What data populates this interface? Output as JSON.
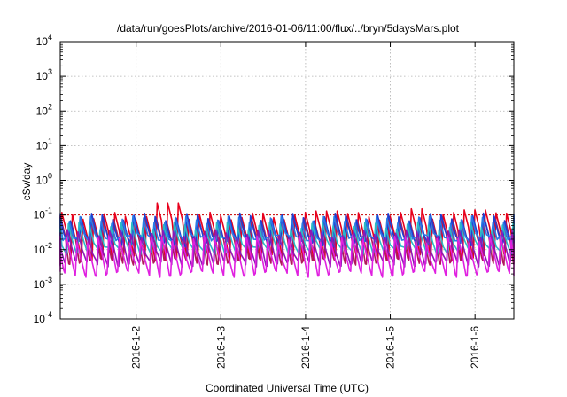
{
  "chart_data": {
    "type": "line",
    "title": "/data/run/goesPlots/archive/2016-01-06/11:00/flux/../bryn/5daysMars.plot",
    "xlabel": "Coordinated Universal Time (UTC)",
    "ylabel": "cSv/day",
    "yscale": "log",
    "ylim": [
      0.0001,
      10000
    ],
    "xlim": [
      "2016-01-01 02:30",
      "2016-01-06 11:00"
    ],
    "grid": true,
    "yticks": [
      {
        "base": "10",
        "exp": "-4",
        "value": 0.0001
      },
      {
        "base": "10",
        "exp": "-3",
        "value": 0.001
      },
      {
        "base": "10",
        "exp": "-2",
        "value": 0.01
      },
      {
        "base": "10",
        "exp": "-1",
        "value": 0.1
      },
      {
        "base": "10",
        "exp": "0",
        "value": 1
      },
      {
        "base": "10",
        "exp": "1",
        "value": 10
      },
      {
        "base": "10",
        "exp": "2",
        "value": 100
      },
      {
        "base": "10",
        "exp": "3",
        "value": 1000
      },
      {
        "base": "10",
        "exp": "4",
        "value": 10000
      }
    ],
    "xticks": [
      "2016-1-2",
      "2016-1-3",
      "2016-1-4",
      "2016-1-5",
      "2016-1-6"
    ],
    "reference_line": {
      "value": 0.1,
      "color": "#cc0000"
    },
    "cycle_hours": 3,
    "series": [
      {
        "color": "#e8001c",
        "peak": 0.095,
        "trough": 0.006,
        "bumps": [
          [
            1.05,
            1.45,
            0.22
          ],
          [
            3.0,
            3.3,
            0.13
          ],
          [
            4.05,
            4.35,
            0.15
          ],
          [
            4.7,
            5.0,
            0.14
          ]
        ]
      },
      {
        "color": "#b0185a",
        "peak": 0.07,
        "trough": 0.0045
      },
      {
        "color": "#1f3fd0",
        "peak": 0.09,
        "trough": 0.015
      },
      {
        "color": "#2a7be6",
        "peak": 0.075,
        "trough": 0.02
      },
      {
        "color": "#2ab8c6",
        "peak": 0.05,
        "trough": 0.009
      },
      {
        "color": "#8e18b4",
        "peak": 0.03,
        "trough": 0.004
      },
      {
        "color": "#e020e0",
        "peak": 0.02,
        "trough": 0.002
      }
    ]
  }
}
